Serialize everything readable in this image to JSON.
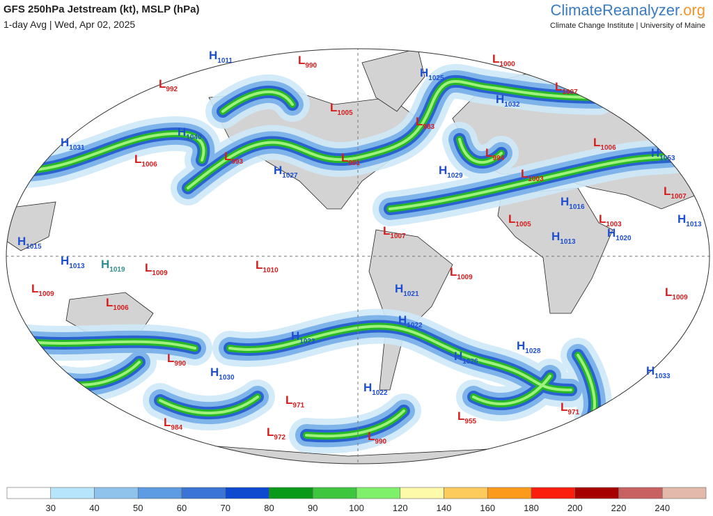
{
  "header": {
    "title": "GFS 250hPa Jetstream (kt), MSLP (hPa)",
    "subtitle": "1-day Avg | Wed, Apr 02, 2025",
    "brand_main": "ClimateReanalyzer",
    "brand_suffix": ".org",
    "institute": "Climate Change Institute | University of Maine"
  },
  "pressure_centers": [
    {
      "type": "H",
      "value": 1011
    },
    {
      "type": "L",
      "value": 990
    },
    {
      "type": "L",
      "value": 1000
    },
    {
      "type": "L",
      "value": 992
    },
    {
      "type": "H",
      "value": 1025
    },
    {
      "type": "L",
      "value": 1007
    },
    {
      "type": "H",
      "value": 1032
    },
    {
      "type": "L",
      "value": 1005
    },
    {
      "type": "L",
      "value": 983
    },
    {
      "type": "H",
      "value": 1040
    },
    {
      "type": "H",
      "value": 1031
    },
    {
      "type": "L",
      "value": 1006
    },
    {
      "type": "L",
      "value": 993
    },
    {
      "type": "L",
      "value": 991
    },
    {
      "type": "L",
      "value": 994
    },
    {
      "type": "L",
      "value": 1006
    },
    {
      "type": "H",
      "value": 1053
    },
    {
      "type": "H",
      "value": 1027
    },
    {
      "type": "H",
      "value": 1029
    },
    {
      "type": "L",
      "value": 1003
    },
    {
      "type": "L",
      "value": 1007
    },
    {
      "type": "H",
      "value": 1016
    },
    {
      "type": "L",
      "value": 1005
    },
    {
      "type": "L",
      "value": 1003
    },
    {
      "type": "H",
      "value": 1013
    },
    {
      "type": "L",
      "value": 1007
    },
    {
      "type": "H",
      "value": 1020
    },
    {
      "type": "H",
      "value": 1013
    },
    {
      "type": "H",
      "value": 1015
    },
    {
      "type": "H",
      "value": 1013
    },
    {
      "type": "H",
      "value": 1019,
      "color": "#2f8f8f"
    },
    {
      "type": "L",
      "value": 1009
    },
    {
      "type": "L",
      "value": 1010
    },
    {
      "type": "L",
      "value": 1009
    },
    {
      "type": "L",
      "value": 1009
    },
    {
      "type": "H",
      "value": 1021
    },
    {
      "type": "L",
      "value": 1009
    },
    {
      "type": "L",
      "value": 1006
    },
    {
      "type": "H",
      "value": 1022
    },
    {
      "type": "H",
      "value": 1023
    },
    {
      "type": "H",
      "value": 1028
    },
    {
      "type": "L",
      "value": 990
    },
    {
      "type": "H",
      "value": 1026
    },
    {
      "type": "H",
      "value": 1030
    },
    {
      "type": "H",
      "value": 1033
    },
    {
      "type": "H",
      "value": 1022
    },
    {
      "type": "L",
      "value": 971
    },
    {
      "type": "L",
      "value": 971
    },
    {
      "type": "L",
      "value": 955
    },
    {
      "type": "L",
      "value": 984
    },
    {
      "type": "L",
      "value": 972
    },
    {
      "type": "L",
      "value": 990
    }
  ],
  "colorbar": {
    "colors": [
      "#ffffff",
      "#b7e5fb",
      "#8fc3ec",
      "#5d9be3",
      "#3a74d6",
      "#0d4ad0",
      "#0a9a19",
      "#3fc63f",
      "#7ff06a",
      "#fdfbaa",
      "#fdcb5c",
      "#fb9a1b",
      "#fb1e0d",
      "#a70000",
      "#c86262",
      "#e2b9ab"
    ],
    "labels": [
      30,
      40,
      50,
      60,
      70,
      80,
      90,
      100,
      120,
      140,
      160,
      180,
      200,
      220,
      240
    ]
  }
}
